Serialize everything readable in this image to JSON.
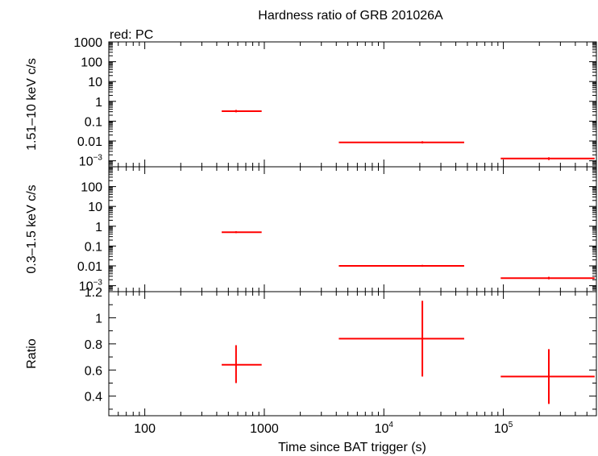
{
  "chart_data": {
    "title": "Hardness ratio of GRB 201026A",
    "legend": "red: PC",
    "xlabel": "Time since BAT trigger (s)",
    "xscale": "log",
    "xlim": [
      50,
      600000
    ],
    "x_ticks": [
      {
        "value": 100,
        "label": "100",
        "sup": ""
      },
      {
        "value": 1000,
        "label": "1000",
        "sup": ""
      },
      {
        "value": 10000,
        "label": "10",
        "sup": "4"
      },
      {
        "value": 100000,
        "label": "10",
        "sup": "5"
      }
    ],
    "panels": [
      {
        "id": "hard",
        "type": "scatter",
        "ylabel": "1.51–10 keV c/s",
        "yscale": "log",
        "ylim": [
          0.0005,
          1000
        ],
        "y_ticks": [
          {
            "value": 1000,
            "label": "1000",
            "sup": ""
          },
          {
            "value": 100,
            "label": "100",
            "sup": ""
          },
          {
            "value": 10,
            "label": "10",
            "sup": ""
          },
          {
            "value": 1,
            "label": "1",
            "sup": ""
          },
          {
            "value": 0.1,
            "label": "0.1",
            "sup": ""
          },
          {
            "value": 0.01,
            "label": "0.01",
            "sup": ""
          },
          {
            "value": 0.001,
            "label": "10",
            "sup": "−3"
          }
        ],
        "points": [
          {
            "x": 580,
            "xlo": 440,
            "xhi": 950,
            "y": 0.32,
            "ylo": 0.28,
            "yhi": 0.37
          },
          {
            "x": 21000,
            "xlo": 4200,
            "xhi": 47000,
            "y": 0.0085,
            "ylo": 0.0075,
            "yhi": 0.0097
          },
          {
            "x": 240000,
            "xlo": 95000,
            "xhi": 580000,
            "y": 0.0013,
            "ylo": 0.0011,
            "yhi": 0.0015
          }
        ]
      },
      {
        "id": "soft",
        "type": "scatter",
        "ylabel": "0.3–1.5 keV c/s",
        "yscale": "log",
        "ylim": [
          0.0005,
          1000
        ],
        "y_ticks": [
          {
            "value": 100,
            "label": "100",
            "sup": ""
          },
          {
            "value": 10,
            "label": "10",
            "sup": ""
          },
          {
            "value": 1,
            "label": "1",
            "sup": ""
          },
          {
            "value": 0.1,
            "label": "0.1",
            "sup": ""
          },
          {
            "value": 0.01,
            "label": "0.01",
            "sup": ""
          },
          {
            "value": 0.001,
            "label": "10",
            "sup": "−3"
          }
        ],
        "points": [
          {
            "x": 580,
            "xlo": 440,
            "xhi": 950,
            "y": 0.5,
            "ylo": 0.45,
            "yhi": 0.56
          },
          {
            "x": 21000,
            "xlo": 4200,
            "xhi": 47000,
            "y": 0.01,
            "ylo": 0.009,
            "yhi": 0.0112
          },
          {
            "x": 240000,
            "xlo": 95000,
            "xhi": 580000,
            "y": 0.0024,
            "ylo": 0.0021,
            "yhi": 0.0028
          }
        ]
      },
      {
        "id": "ratio",
        "type": "scatter",
        "ylabel": "Ratio",
        "yscale": "linear",
        "ylim": [
          0.25,
          1.2
        ],
        "y_ticks": [
          {
            "value": 1.2,
            "label": "1.2",
            "sup": ""
          },
          {
            "value": 1,
            "label": "1",
            "sup": ""
          },
          {
            "value": 0.8,
            "label": "0.8",
            "sup": ""
          },
          {
            "value": 0.6,
            "label": "0.6",
            "sup": ""
          },
          {
            "value": 0.4,
            "label": "0.4",
            "sup": ""
          }
        ],
        "points": [
          {
            "x": 580,
            "xlo": 440,
            "xhi": 950,
            "y": 0.64,
            "ylo": 0.5,
            "yhi": 0.79
          },
          {
            "x": 21000,
            "xlo": 4200,
            "xhi": 47000,
            "y": 0.84,
            "ylo": 0.55,
            "yhi": 1.13
          },
          {
            "x": 240000,
            "xlo": 95000,
            "xhi": 580000,
            "y": 0.55,
            "ylo": 0.34,
            "yhi": 0.76
          }
        ]
      }
    ],
    "color": "#ff0000",
    "grid": false
  }
}
